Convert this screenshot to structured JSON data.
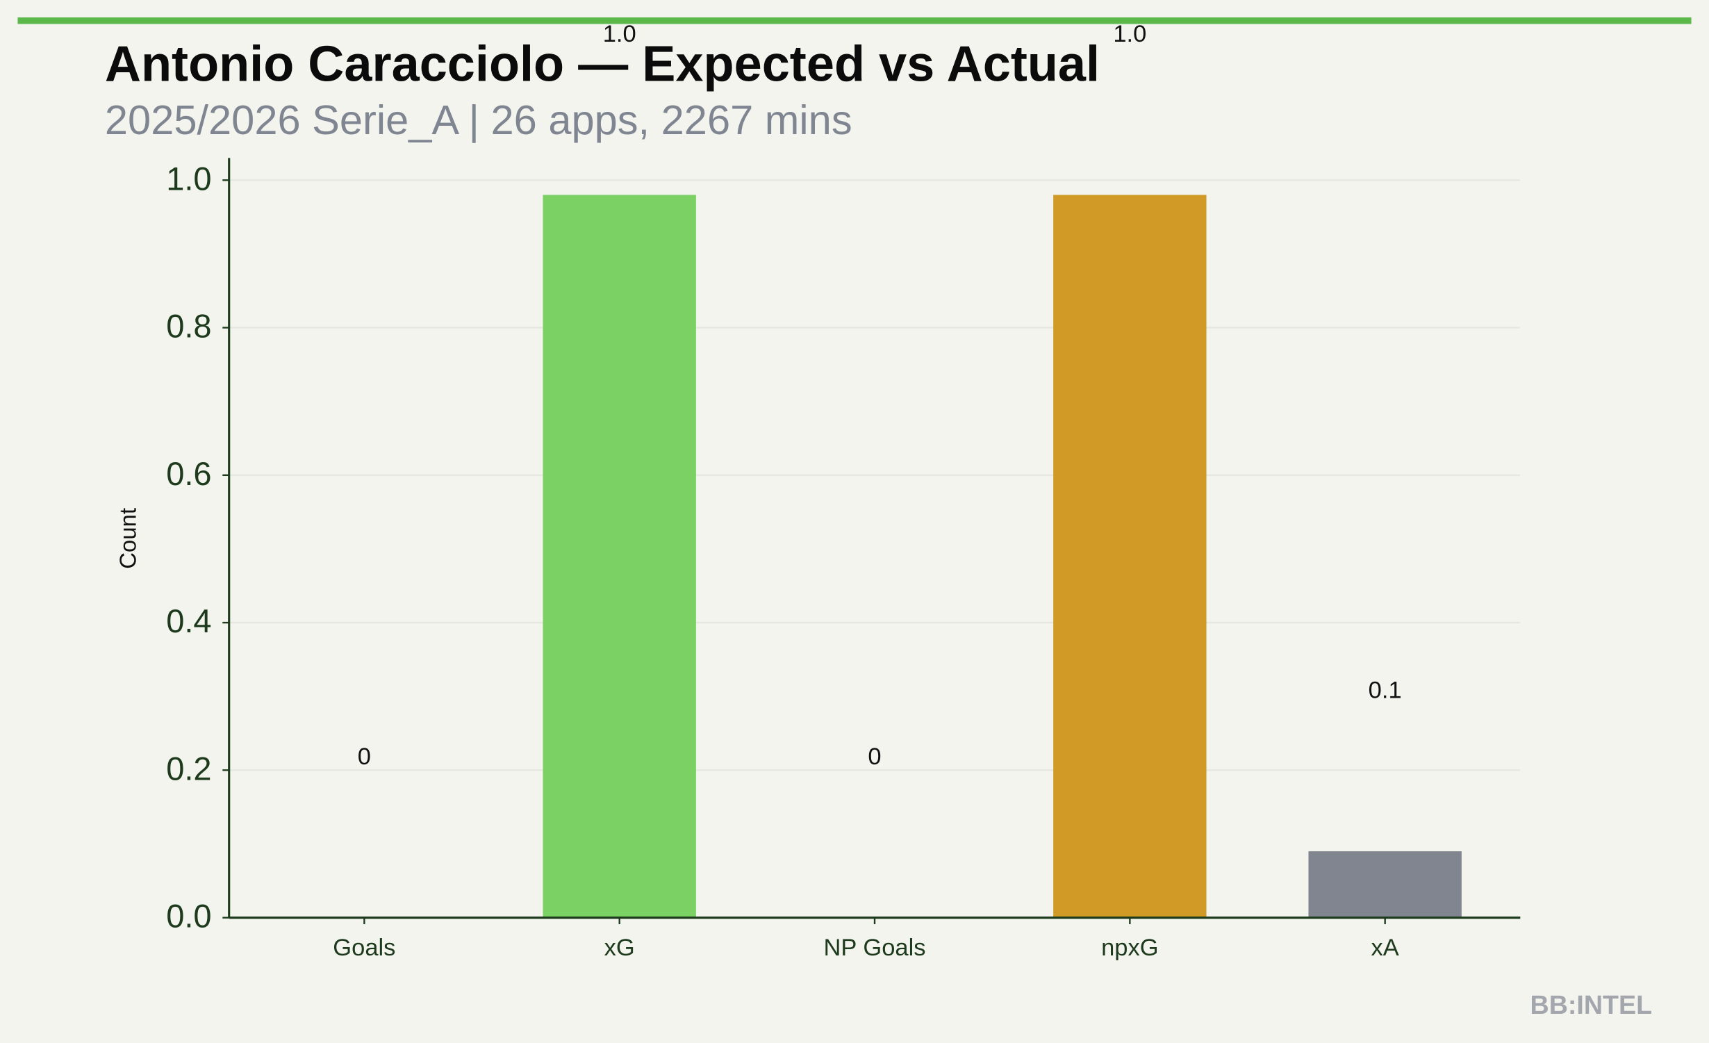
{
  "chart_data": {
    "type": "bar",
    "title": "Antonio Caracciolo — Expected vs Actual",
    "subtitle": "2025/2026 Serie_A | 26 apps, 2267 mins",
    "y_label": "Count",
    "footer": "BB:INTEL",
    "categories": [
      "Goals",
      "xG",
      "NP Goals",
      "npxG",
      "xA"
    ],
    "values": [
      0,
      0.98,
      0,
      0.98,
      0.09
    ],
    "value_labels": [
      "0",
      "1.0",
      "0",
      "1.0",
      "0.1"
    ],
    "colors": [
      "#5cb84a",
      "#7bd164",
      "#5cb84a",
      "#d19a26",
      "#80858f"
    ],
    "ylim": [
      0,
      1.03
    ],
    "yticks": [
      {
        "value": 0,
        "label": "0.0"
      },
      0.2,
      0.4,
      0.6,
      0.8,
      {
        "value": 1,
        "label": "1.0"
      }
    ],
    "grid": true
  }
}
